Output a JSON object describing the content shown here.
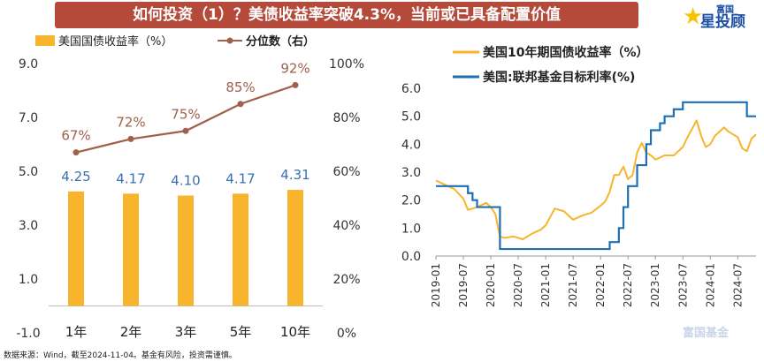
{
  "title": "如何投资（1）？美债收益率突破4.3%，当前或已具备配置价值",
  "logo": {
    "small": "富国",
    "main": "星投顾",
    "icon": "star-icon",
    "watermark": "富国基金"
  },
  "source_note": "数据来源：Wind，截至2024-11-04。基金有风险，投资需谨慎。",
  "chart_data": [
    {
      "type": "bar+line",
      "legend": [
        "美国国债收益率（%）",
        "分位数（右）"
      ],
      "categories": [
        "1年",
        "2年",
        "3年",
        "5年",
        "10年"
      ],
      "bar_values": [
        4.25,
        4.17,
        4.1,
        4.17,
        4.31
      ],
      "bar_labels": [
        "4.25",
        "4.17",
        "4.10",
        "4.17",
        "4.31"
      ],
      "line_values": [
        67,
        72,
        75,
        85,
        92
      ],
      "line_labels": [
        "67%",
        "72%",
        "75%",
        "85%",
        "92%"
      ],
      "ylim_left": [
        -1.0,
        9.0
      ],
      "yticks_left": [
        "-1.0",
        "1.0",
        "3.0",
        "5.0",
        "7.0",
        "9.0"
      ],
      "ylim_right": [
        0,
        100
      ],
      "yticks_right": [
        "0%",
        "20%",
        "40%",
        "60%",
        "80%",
        "100%"
      ],
      "colors": {
        "bar": "#f7b42c",
        "line": "#a0604a",
        "bar_label": "#3a6fb0",
        "line_label": "#a0604a"
      }
    },
    {
      "type": "line",
      "legend": [
        "美国10年期国债收益率（%）",
        "美国:联邦基金目标利率(%)"
      ],
      "x_ticks": [
        "2019-01",
        "2019-07",
        "2020-01",
        "2020-07",
        "2021-01",
        "2021-07",
        "2022-01",
        "2022-07",
        "2023-01",
        "2023-07",
        "2024-01",
        "2024-07"
      ],
      "ylim": [
        0.0,
        6.0
      ],
      "yticks": [
        "0.0",
        "1.0",
        "2.0",
        "3.0",
        "4.0",
        "5.0",
        "6.0"
      ],
      "colors": {
        "treasury": "#f7b42c",
        "fed": "#1f6fb2"
      },
      "series": [
        {
          "name": "美国10年期国债收益率（%）",
          "x": [
            "2019-01",
            "2019-03",
            "2019-05",
            "2019-07",
            "2019-08",
            "2019-09",
            "2019-10",
            "2019-12",
            "2020-01",
            "2020-02",
            "2020-03",
            "2020-04",
            "2020-06",
            "2020-08",
            "2020-10",
            "2020-12",
            "2021-01",
            "2021-02",
            "2021-03",
            "2021-05",
            "2021-07",
            "2021-09",
            "2021-11",
            "2022-01",
            "2022-02",
            "2022-03",
            "2022-04",
            "2022-05",
            "2022-06",
            "2022-07",
            "2022-08",
            "2022-09",
            "2022-10",
            "2022-11",
            "2022-12",
            "2023-01",
            "2023-03",
            "2023-05",
            "2023-07",
            "2023-08",
            "2023-09",
            "2023-10",
            "2023-11",
            "2023-12",
            "2024-01",
            "2024-02",
            "2024-04",
            "2024-05",
            "2024-07",
            "2024-08",
            "2024-09",
            "2024-10",
            "2024-11"
          ],
          "values": [
            2.7,
            2.55,
            2.4,
            2.05,
            1.65,
            1.7,
            1.75,
            1.9,
            1.75,
            1.5,
            0.7,
            0.65,
            0.7,
            0.6,
            0.8,
            0.95,
            1.1,
            1.4,
            1.7,
            1.6,
            1.3,
            1.45,
            1.55,
            1.8,
            1.95,
            2.3,
            2.9,
            2.9,
            3.2,
            2.75,
            2.9,
            3.7,
            4.05,
            3.7,
            3.6,
            3.45,
            3.6,
            3.6,
            3.9,
            4.25,
            4.55,
            4.85,
            4.3,
            3.9,
            4.0,
            4.3,
            4.6,
            4.45,
            4.25,
            3.85,
            3.75,
            4.2,
            4.35
          ]
        },
        {
          "name": "美国:联邦基金目标利率(%)",
          "x": [
            "2019-01",
            "2019-07",
            "2019-08",
            "2019-09",
            "2019-10",
            "2020-03",
            "2022-03",
            "2022-05",
            "2022-06",
            "2022-07",
            "2022-09",
            "2022-11",
            "2022-12",
            "2023-02",
            "2023-03",
            "2023-05",
            "2023-07",
            "2024-09",
            "2024-11"
          ],
          "values": [
            2.5,
            2.5,
            2.25,
            2.0,
            1.75,
            0.25,
            0.5,
            1.0,
            1.75,
            2.5,
            3.25,
            4.0,
            4.5,
            4.75,
            5.0,
            5.25,
            5.5,
            5.0,
            5.0
          ]
        }
      ]
    }
  ]
}
